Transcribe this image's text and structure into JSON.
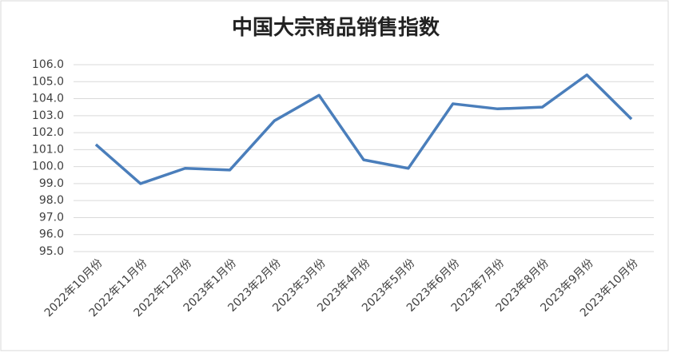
{
  "chart_data": {
    "type": "line",
    "title": "中国大宗商品销售指数",
    "categories": [
      "2022年10月份",
      "2022年11月份",
      "2022年12月份",
      "2023年1月份",
      "2023年2月份",
      "2023年3月份",
      "2023年4月份",
      "2023年5月份",
      "2023年6月份",
      "2023年7月份",
      "2023年8月份",
      "2023年9月份",
      "2023年10月份"
    ],
    "values": [
      101.3,
      99.0,
      99.9,
      99.8,
      102.7,
      104.2,
      100.4,
      99.9,
      103.7,
      103.4,
      103.5,
      105.4,
      102.8
    ],
    "color": "#4a7ebb",
    "ylim": [
      95,
      106
    ],
    "yticks": [
      {
        "value": 95,
        "label": "95.0"
      },
      {
        "value": 96,
        "label": "96.0"
      },
      {
        "value": 97,
        "label": "97.0"
      },
      {
        "value": 98,
        "label": "98.0"
      },
      {
        "value": 99,
        "label": "99.0"
      },
      {
        "value": 100,
        "label": "100.0"
      },
      {
        "value": 101,
        "label": "101.0"
      },
      {
        "value": 102,
        "label": "102.0"
      },
      {
        "value": 103,
        "label": "103.0"
      },
      {
        "value": 104,
        "label": "104.0"
      },
      {
        "value": 105,
        "label": "105.0"
      },
      {
        "value": 106,
        "label": "106.0"
      }
    ],
    "grid": true
  }
}
